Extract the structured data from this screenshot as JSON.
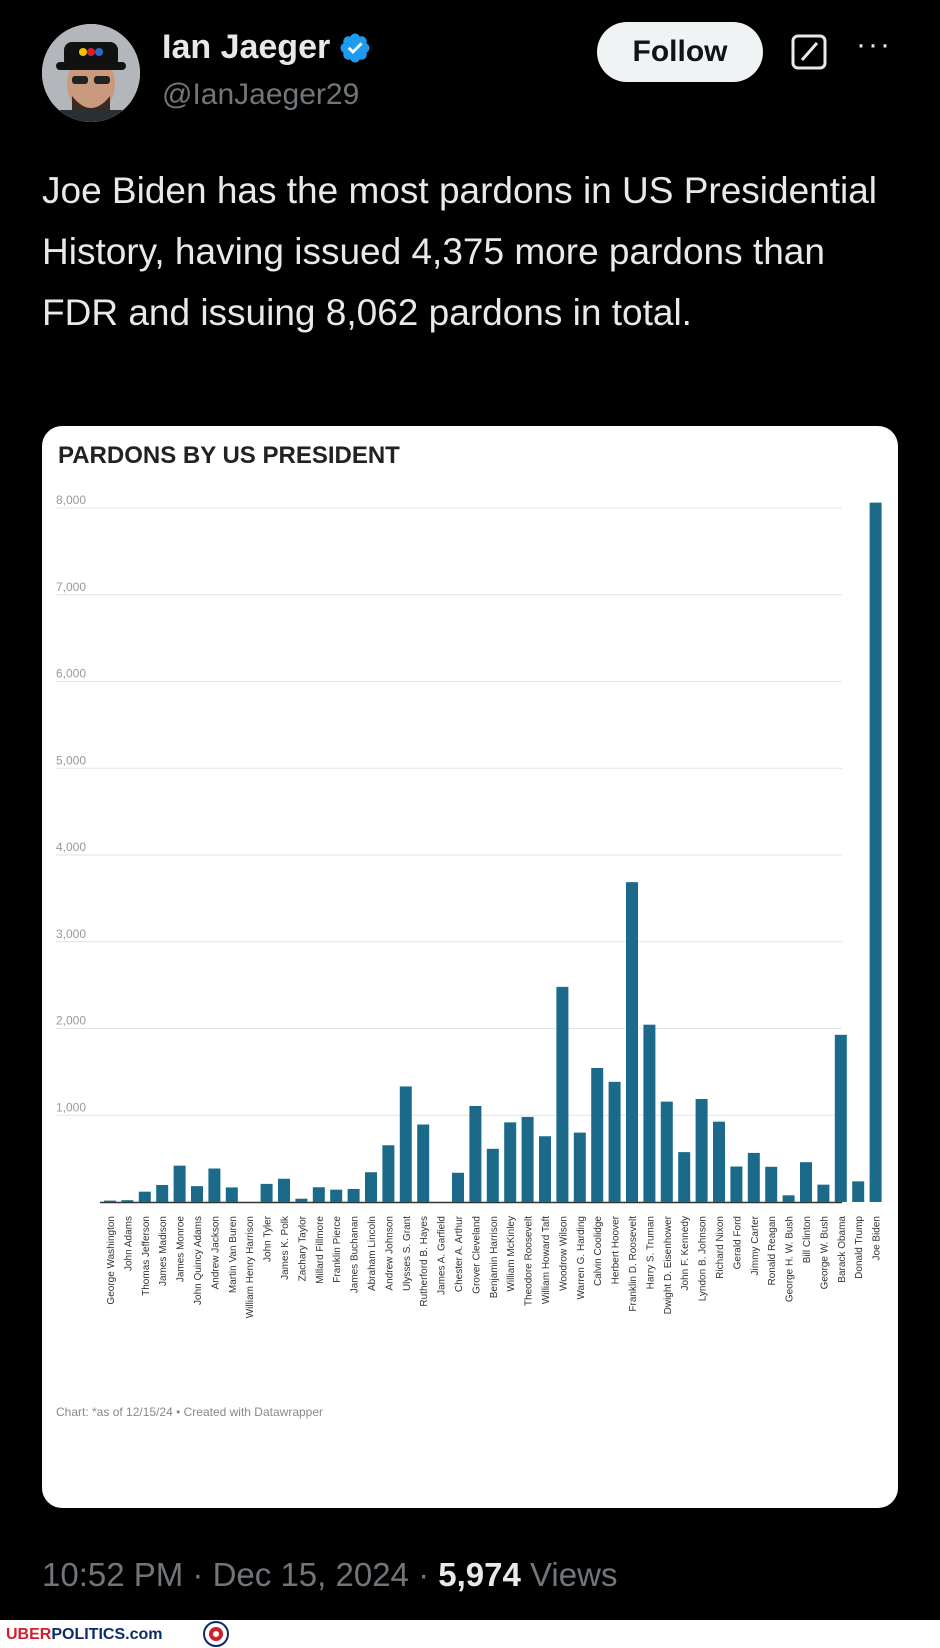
{
  "tweet": {
    "author_name": "Ian Jaeger",
    "handle": "@IanJaeger29",
    "follow_label": "Follow",
    "more_label": "···",
    "text": "Joe Biden has the most pardons in US Presidential History, having issued 4,375 more pardons than FDR and issuing 8,062 pardons in total.",
    "time": "10:52 PM",
    "date": "Dec 15, 2024",
    "sep": "·",
    "views_count": "5,974",
    "views_label": "Views"
  },
  "watermark": {
    "part1": "UBER",
    "part2": "POLITICS.com"
  },
  "colors": {
    "bar": "#1b6a8a",
    "accent": "#1d9bf0"
  },
  "chart_data": {
    "type": "bar",
    "title": "PARDONS BY US PRESIDENT",
    "footnote": "Chart: *as of 12/15/24 • Created with Datawrapper",
    "ylim": [
      0,
      8000
    ],
    "yticks": [
      1000,
      2000,
      3000,
      4000,
      5000,
      6000,
      7000,
      8000
    ],
    "ytick_labels": [
      "1,000",
      "2,000",
      "3,000",
      "4,000",
      "5,000",
      "6,000",
      "7,000",
      "8,000"
    ],
    "grid": true,
    "categories": [
      "George Washington",
      "John Adams",
      "Thomas Jefferson",
      "James Madison",
      "James Monroe",
      "John Quincy Adams",
      "Andrew Jackson",
      "Martin Van Buren",
      "William Henry Harrison",
      "John Tyler",
      "James K. Polk",
      "Zachary Taylor",
      "Millard Fillmore",
      "Franklin Pierce",
      "James Buchanan",
      "Abraham Lincoln",
      "Andrew Johnson",
      "Ulysses S. Grant",
      "Rutherford B. Hayes",
      "James A. Garfield",
      "Chester A. Arthur",
      "Grover Cleveland",
      "Benjamin Harrison",
      "William McKinley",
      "Theodore Roosevelt",
      "William Howard Taft",
      "Woodrow Wilson",
      "Warren G. Harding",
      "Calvin Coolidge",
      "Herbert Hoover",
      "Franklin D. Roosevelt",
      "Harry S. Truman",
      "Dwight D. Eisenhower",
      "John F. Kennedy",
      "Lyndon B. Johnson",
      "Richard Nixon",
      "Gerald Ford",
      "Jimmy Carter",
      "Ronald Reagan",
      "George H. W. Bush",
      "Bill Clinton",
      "George W. Bush",
      "Barack Obama",
      "Donald Trump",
      "Joe Biden"
    ],
    "values": [
      16,
      21,
      119,
      196,
      419,
      183,
      386,
      168,
      0,
      209,
      268,
      38,
      170,
      142,
      150,
      343,
      654,
      1332,
      893,
      0,
      337,
      1107,
      613,
      918,
      981,
      758,
      2480,
      800,
      1545,
      1385,
      3687,
      2044,
      1157,
      575,
      1187,
      926,
      409,
      566,
      406,
      77,
      459,
      200,
      1927,
      238,
      8062
    ]
  }
}
